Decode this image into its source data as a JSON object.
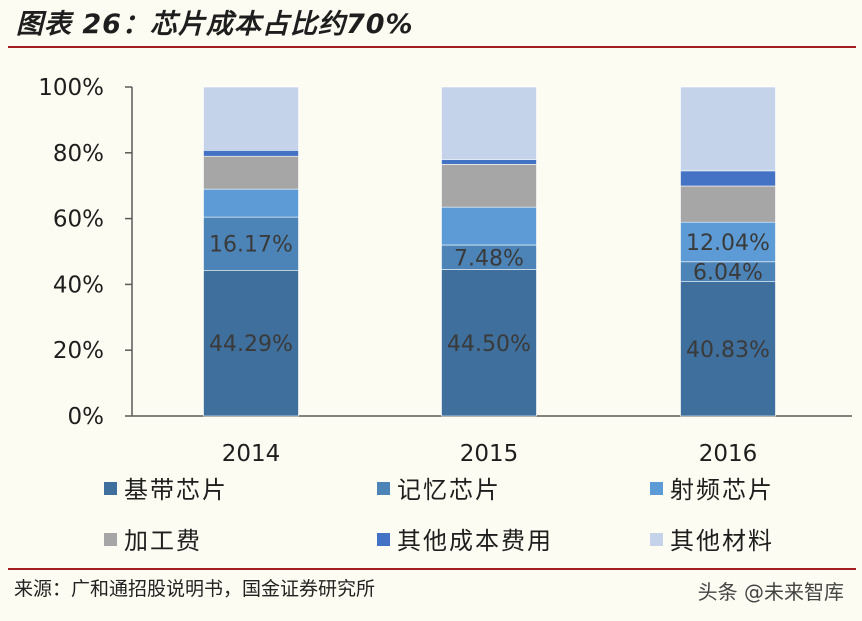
{
  "header": {
    "title": "图表 26：芯片成本占比约70%"
  },
  "footer": {
    "source": "来源：广和通招股说明书，国金证券研究所",
    "watermark": "头条 @未来智库"
  },
  "chart_data": {
    "type": "bar",
    "stacked": true,
    "percent": true,
    "categories": [
      "2014",
      "2015",
      "2016"
    ],
    "ylim": [
      0,
      100
    ],
    "yticks": [
      "0%",
      "20%",
      "40%",
      "60%",
      "80%",
      "100%"
    ],
    "grid": false,
    "legend_position": "bottom",
    "series": [
      {
        "name": "基带芯片",
        "color": "#3f6f9c",
        "values": [
          44.29,
          44.5,
          40.83
        ],
        "labels": [
          "44.29%",
          "44.50%",
          "40.83%"
        ]
      },
      {
        "name": "记忆芯片",
        "color": "#4c84b8",
        "values": [
          16.17,
          7.48,
          6.04
        ],
        "labels": [
          "16.17%",
          "7.48%",
          "6.04%"
        ]
      },
      {
        "name": "射频芯片",
        "color": "#5c9bd5",
        "values": [
          8.5,
          11.5,
          12.04
        ],
        "labels": [
          "",
          "",
          "12.04%"
        ]
      },
      {
        "name": "加工费",
        "color": "#a6a6a6",
        "values": [
          10.0,
          13.0,
          11.0
        ],
        "labels": [
          "",
          "",
          ""
        ]
      },
      {
        "name": "其他成本费用",
        "color": "#4472c4",
        "values": [
          1.8,
          1.5,
          4.6
        ],
        "labels": [
          "",
          "",
          ""
        ]
      },
      {
        "name": "其他材料",
        "color": "#c5d3ea",
        "values": [
          19.24,
          22.02,
          25.49
        ],
        "labels": [
          "",
          "",
          ""
        ]
      }
    ]
  }
}
